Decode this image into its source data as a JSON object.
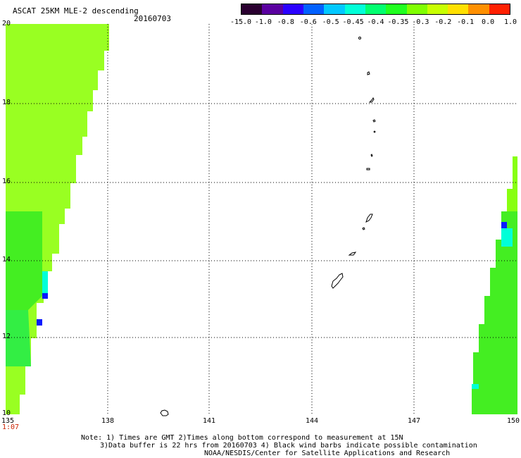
{
  "header": {
    "title": "ASCAT 25KM MLE-2 descending",
    "date": "20160703"
  },
  "colorbar": {
    "colors": [
      "#2a0030",
      "#5a00a0",
      "#2a00ff",
      "#0060ff",
      "#00c8ff",
      "#00ffd8",
      "#00ff70",
      "#20ff20",
      "#80ff00",
      "#c8ff00",
      "#ffe000",
      "#ff9000",
      "#ff2000"
    ],
    "labels": [
      "-15.0",
      "-1.0",
      "-0.8",
      "-0.6",
      "-0.5",
      "-0.45",
      "-0.4",
      "-0.35",
      "-0.3",
      "-0.2",
      "-0.1",
      "0.0",
      "1.0"
    ]
  },
  "axes": {
    "lat_ticks": [
      "20",
      "18",
      "16",
      "14",
      "12",
      "10"
    ],
    "lon_ticks": [
      "135",
      "138",
      "141",
      "144",
      "147",
      "150"
    ],
    "grid": "dotted"
  },
  "time_label": "1:07",
  "notes": {
    "line1": "Note: 1) Times are GMT 2)Times along bottom correspond to measurement at 15N",
    "line2": "3)Data buffer is 22 hrs from 20160703 4) Black wind barbs indicate possible contamination",
    "line3": "NOAA/NESDIS/Center for Satellite Applications and Research"
  },
  "swaths": {
    "west_color": "#99ff22",
    "east_color": "#44ee22"
  },
  "islands_color": "#000000"
}
